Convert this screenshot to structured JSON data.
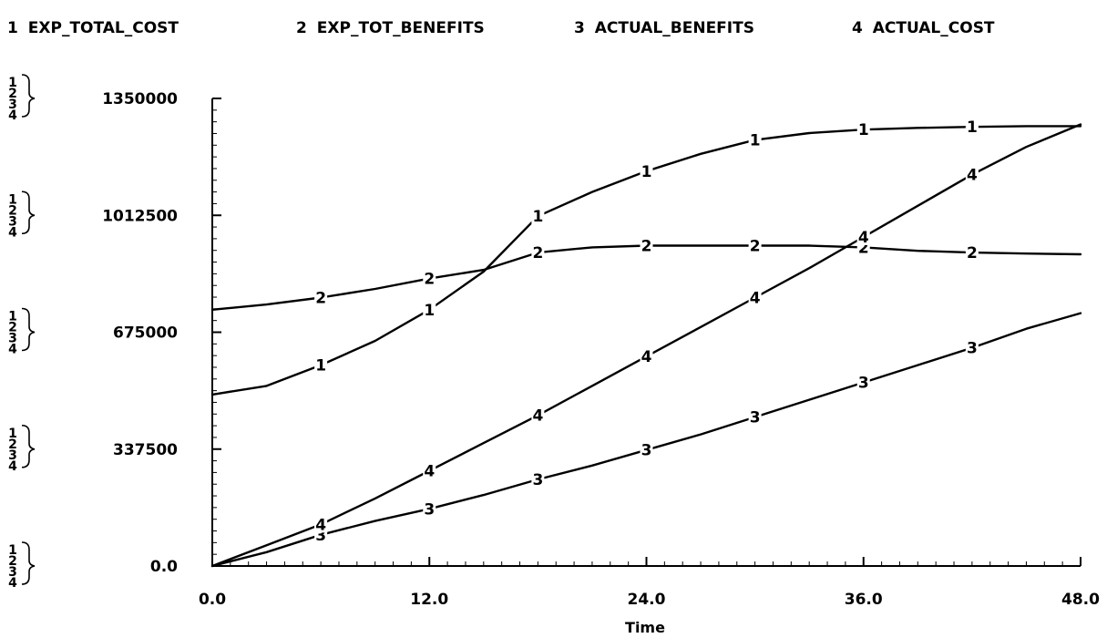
{
  "chart_data": {
    "type": "line",
    "title": "",
    "xlabel": "Time",
    "ylabel": "",
    "xlim": [
      0,
      48
    ],
    "ylim": [
      0,
      1350000
    ],
    "x_ticks": [
      0,
      12,
      24,
      36,
      48
    ],
    "x_tick_labels": [
      "0.0",
      "12.0",
      "24.0",
      "36.0",
      "48.0"
    ],
    "y_ticks": [
      0,
      337500,
      675000,
      1012500,
      1350000
    ],
    "y_tick_labels": [
      "0.0",
      "337500",
      "675000",
      "1012500",
      "1350000"
    ],
    "y_axis_group_labels": [
      "1",
      "2",
      "3",
      "4"
    ],
    "grid": false,
    "legend_position": "top",
    "x": [
      0,
      3,
      6,
      9,
      12,
      15,
      18,
      21,
      24,
      27,
      30,
      33,
      36,
      39,
      42,
      45,
      48
    ],
    "series": [
      {
        "name": "EXP_TOTAL_COST",
        "marker": "1",
        "values": [
          495000,
          520000,
          580000,
          650000,
          740000,
          850000,
          1010000,
          1080000,
          1140000,
          1190000,
          1230000,
          1250000,
          1260000,
          1265000,
          1268000,
          1270000,
          1270000
        ]
      },
      {
        "name": "EXP_TOT_BENEFITS",
        "marker": "2",
        "values": [
          740000,
          755000,
          775000,
          800000,
          830000,
          855000,
          905000,
          920000,
          925000,
          925000,
          925000,
          925000,
          920000,
          910000,
          905000,
          902000,
          900000
        ]
      },
      {
        "name": "ACTUAL_BENEFITS",
        "marker": "3",
        "values": [
          0,
          40000,
          90000,
          130000,
          165000,
          205000,
          250000,
          290000,
          335000,
          380000,
          430000,
          480000,
          530000,
          580000,
          630000,
          685000,
          730000
        ]
      },
      {
        "name": "ACTUAL_COST",
        "marker": "4",
        "values": [
          0,
          60000,
          120000,
          195000,
          275000,
          355000,
          435000,
          520000,
          605000,
          690000,
          775000,
          860000,
          950000,
          1040000,
          1130000,
          1210000,
          1275000
        ]
      }
    ],
    "marker_positions": [
      {
        "series": 0,
        "x": [
          6,
          12,
          18,
          24,
          30,
          36,
          42
        ]
      },
      {
        "series": 1,
        "x": [
          6,
          12,
          18,
          24,
          30,
          36,
          42
        ]
      },
      {
        "series": 2,
        "x": [
          6,
          12,
          18,
          24,
          30,
          36,
          42
        ]
      },
      {
        "series": 3,
        "x": [
          6,
          12,
          18,
          24,
          30,
          36,
          42
        ]
      }
    ],
    "legend": [
      {
        "number": "1",
        "name": "EXP_TOTAL_COST"
      },
      {
        "number": "2",
        "name": "EXP_TOT_BENEFITS"
      },
      {
        "number": "3",
        "name": "ACTUAL_BENEFITS"
      },
      {
        "number": "4",
        "name": "ACTUAL_COST"
      }
    ],
    "colors": {
      "line": "#000000",
      "background": "#ffffff"
    }
  }
}
